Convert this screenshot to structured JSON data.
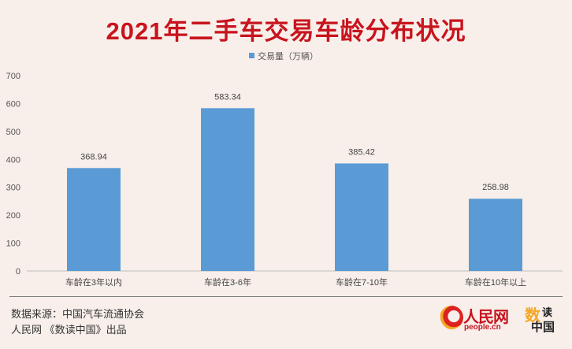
{
  "header": {
    "title": "2021年二手车交易车龄分布状况"
  },
  "chart_data": {
    "type": "bar",
    "title": "2021年二手车交易车龄分布状况",
    "categories": [
      "车龄在3年以内",
      "车龄在3-6年",
      "车龄在7-10年",
      "车龄在10年以上"
    ],
    "series": [
      {
        "name": "交易量（万辆）",
        "values": [
          368.94,
          583.34,
          385.42,
          258.98
        ],
        "color": "#5b9bd5"
      }
    ],
    "value_labels": [
      "368.94",
      "583.34",
      "385.42",
      "258.98"
    ],
    "ylim": [
      0,
      700
    ],
    "yticks": [
      0,
      100,
      200,
      300,
      400,
      500,
      600,
      700
    ],
    "grid": false,
    "legend": "top-center",
    "xlabel": "",
    "ylabel": ""
  },
  "footer": {
    "source": "数据来源：中国汽车流通协会",
    "credit": "人民网 《数读中国》出品"
  },
  "logos": {
    "peoplenet_cn": "人民网",
    "peoplenet_url": "people.cn",
    "shudu_1": "数",
    "shudu_2": "读",
    "shudu_3": "中国"
  },
  "colors": {
    "title": "#c8141e",
    "bar": "#5b9bd5",
    "background": "#f8efea"
  }
}
